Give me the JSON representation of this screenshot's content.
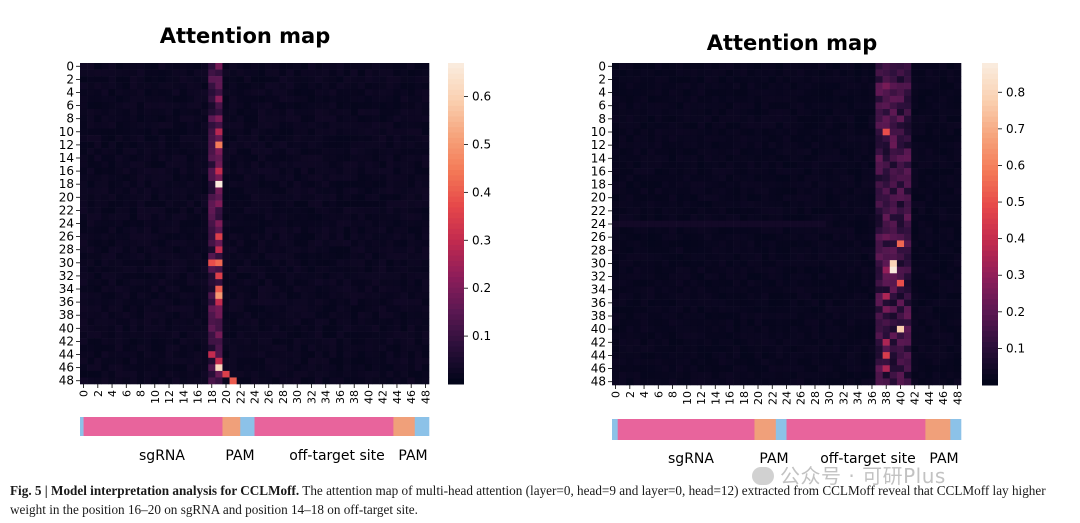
{
  "chart_data": [
    {
      "type": "heatmap",
      "title": "Attention map",
      "rows": 49,
      "cols": 49,
      "y_tick_labels": [
        "0",
        "2",
        "4",
        "6",
        "8",
        "10",
        "12",
        "14",
        "16",
        "18",
        "20",
        "22",
        "24",
        "26",
        "28",
        "30",
        "32",
        "34",
        "36",
        "38",
        "40",
        "42",
        "44",
        "46",
        "48"
      ],
      "x_tick_labels": [
        "0",
        "2",
        "4",
        "6",
        "8",
        "10",
        "12",
        "14",
        "16",
        "18",
        "20",
        "22",
        "24",
        "26",
        "28",
        "30",
        "32",
        "34",
        "36",
        "38",
        "40",
        "42",
        "44",
        "46",
        "48"
      ],
      "colorbar_ticks": [
        "0.6",
        "0.5",
        "0.4",
        "0.3",
        "0.2",
        "0.1"
      ],
      "colorbar_values": [
        0.6,
        0.5,
        0.4,
        0.3,
        0.2,
        0.1
      ],
      "vmin": 0.0,
      "vmax": 0.67,
      "hot_column": 19,
      "hot_cells": [
        [
          5,
          19,
          0.22
        ],
        [
          8,
          19,
          0.2
        ],
        [
          10,
          19,
          0.28
        ],
        [
          12,
          19,
          0.45
        ],
        [
          16,
          19,
          0.3
        ],
        [
          18,
          19,
          0.67
        ],
        [
          21,
          19,
          0.2
        ],
        [
          24,
          19,
          0.2
        ],
        [
          26,
          19,
          0.35
        ],
        [
          28,
          19,
          0.3
        ],
        [
          30,
          18,
          0.38
        ],
        [
          30,
          19,
          0.42
        ],
        [
          32,
          19,
          0.35
        ],
        [
          34,
          19,
          0.4
        ],
        [
          35,
          19,
          0.5
        ],
        [
          36,
          19,
          0.3
        ],
        [
          44,
          18,
          0.3
        ],
        [
          45,
          19,
          0.3
        ],
        [
          46,
          19,
          0.62
        ],
        [
          47,
          20,
          0.35
        ],
        [
          48,
          21,
          0.4
        ]
      ],
      "region_bar": [
        {
          "label": "",
          "color": "#8cc2e8",
          "span": [
            0,
            0.5
          ]
        },
        {
          "label": "sgRNA",
          "color": "#e8649c",
          "span": [
            0.5,
            20
          ]
        },
        {
          "label": "PAM",
          "color": "#f0a07a",
          "span": [
            20,
            22.5
          ]
        },
        {
          "label": "",
          "color": "#8cc2e8",
          "span": [
            22.5,
            24.5
          ]
        },
        {
          "label": "off-target site",
          "color": "#e8649c",
          "span": [
            24.5,
            44
          ]
        },
        {
          "label": "PAM",
          "color": "#f0a07a",
          "span": [
            44,
            47
          ]
        },
        {
          "label": "",
          "color": "#8cc2e8",
          "span": [
            47,
            49
          ]
        }
      ]
    },
    {
      "type": "heatmap",
      "title": "Attention map",
      "rows": 49,
      "cols": 49,
      "y_tick_labels": [
        "0",
        "2",
        "4",
        "6",
        "8",
        "10",
        "12",
        "14",
        "16",
        "18",
        "20",
        "22",
        "24",
        "26",
        "28",
        "30",
        "32",
        "34",
        "36",
        "38",
        "40",
        "42",
        "44",
        "46",
        "48"
      ],
      "x_tick_labels": [
        "0",
        "2",
        "4",
        "6",
        "8",
        "10",
        "12",
        "14",
        "16",
        "18",
        "20",
        "22",
        "24",
        "26",
        "28",
        "30",
        "32",
        "34",
        "36",
        "38",
        "40",
        "42",
        "44",
        "46",
        "48"
      ],
      "colorbar_ticks": [
        "0.8",
        "0.7",
        "0.6",
        "0.5",
        "0.4",
        "0.3",
        "0.2",
        "0.1"
      ],
      "colorbar_values": [
        0.8,
        0.7,
        0.6,
        0.5,
        0.4,
        0.3,
        0.2,
        0.1
      ],
      "vmin": 0.0,
      "vmax": 0.88,
      "hot_column_range": [
        37,
        41
      ],
      "hot_cells": [
        [
          10,
          38,
          0.5
        ],
        [
          27,
          40,
          0.55
        ],
        [
          30,
          39,
          0.8
        ],
        [
          31,
          38,
          0.3
        ],
        [
          31,
          39,
          0.88
        ],
        [
          33,
          40,
          0.5
        ],
        [
          35,
          38,
          0.35
        ],
        [
          40,
          40,
          0.78
        ],
        [
          42,
          38,
          0.35
        ],
        [
          44,
          38,
          0.45
        ],
        [
          46,
          38,
          0.35
        ],
        [
          3,
          38,
          0.25
        ],
        [
          5,
          39,
          0.2
        ],
        [
          12,
          39,
          0.22
        ],
        [
          26,
          38,
          0.22
        ],
        [
          37,
          38,
          0.25
        ]
      ],
      "region_bar": [
        {
          "label": "",
          "color": "#8cc2e8",
          "span": [
            0,
            0.8
          ]
        },
        {
          "label": "sgRNA",
          "color": "#e8649c",
          "span": [
            0.8,
            20
          ]
        },
        {
          "label": "PAM",
          "color": "#f0a07a",
          "span": [
            20,
            23
          ]
        },
        {
          "label": "",
          "color": "#8cc2e8",
          "span": [
            23,
            24.5
          ]
        },
        {
          "label": "off-target site",
          "color": "#e8649c",
          "span": [
            24.5,
            44
          ]
        },
        {
          "label": "PAM",
          "color": "#f0a07a",
          "span": [
            44,
            47.5
          ]
        },
        {
          "label": "",
          "color": "#8cc2e8",
          "span": [
            47.5,
            49
          ]
        }
      ]
    }
  ],
  "caption": {
    "label": "Fig. 5 | Model interpretation analysis for CCLMoff.",
    "text": "The attention map of multi-head attention (layer=0, head=9 and layer=0, head=12) extracted from CCLMoff reveal that CCLMoff lay higher weight in the position 16–20 on sgRNA and position 14–18 on off-target site."
  },
  "watermark": "公众号 · 可研Plus",
  "colors": {
    "cmap": [
      "#03051a",
      "#2b0f3a",
      "#5b1852",
      "#8e1d5a",
      "#c22a4f",
      "#e6484a",
      "#f47a57",
      "#f6a47c",
      "#fad0b0",
      "#faebdd"
    ]
  }
}
